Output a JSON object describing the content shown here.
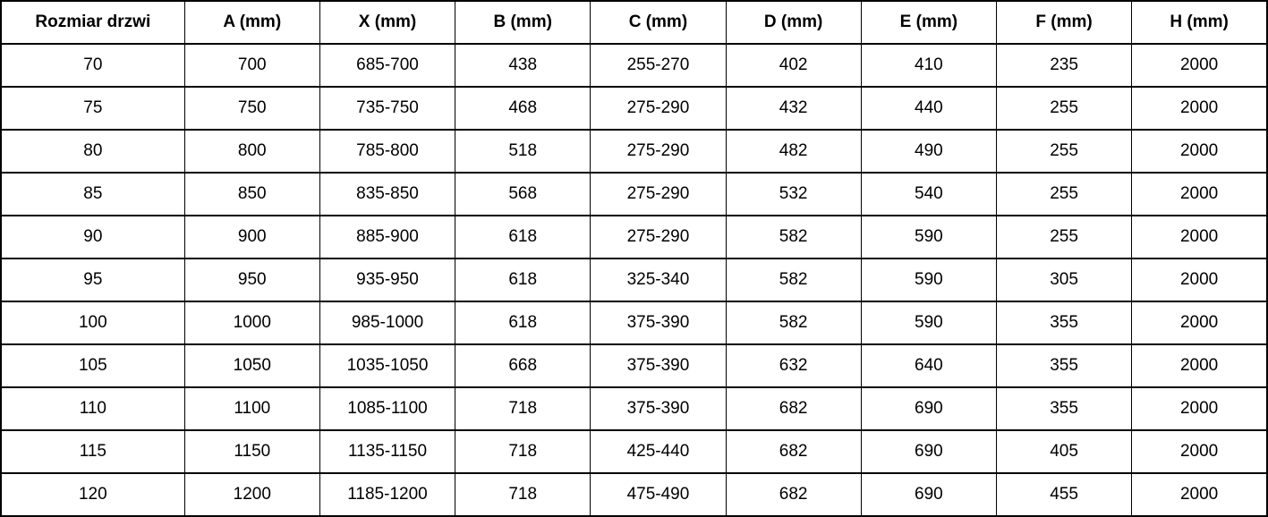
{
  "table": {
    "name": "door-size-specification",
    "columns": [
      "Rozmiar drzwi",
      "A (mm)",
      "X (mm)",
      "B (mm)",
      "C (mm)",
      "D (mm)",
      "E (mm)",
      "F (mm)",
      "H (mm)"
    ],
    "rows": [
      [
        "70",
        "700",
        "685-700",
        "438",
        "255-270",
        "402",
        "410",
        "235",
        "2000"
      ],
      [
        "75",
        "750",
        "735-750",
        "468",
        "275-290",
        "432",
        "440",
        "255",
        "2000"
      ],
      [
        "80",
        "800",
        "785-800",
        "518",
        "275-290",
        "482",
        "490",
        "255",
        "2000"
      ],
      [
        "85",
        "850",
        "835-850",
        "568",
        "275-290",
        "532",
        "540",
        "255",
        "2000"
      ],
      [
        "90",
        "900",
        "885-900",
        "618",
        "275-290",
        "582",
        "590",
        "255",
        "2000"
      ],
      [
        "95",
        "950",
        "935-950",
        "618",
        "325-340",
        "582",
        "590",
        "305",
        "2000"
      ],
      [
        "100",
        "1000",
        "985-1000",
        "618",
        "375-390",
        "582",
        "590",
        "355",
        "2000"
      ],
      [
        "105",
        "1050",
        "1035-1050",
        "668",
        "375-390",
        "632",
        "640",
        "355",
        "2000"
      ],
      [
        "110",
        "1100",
        "1085-1100",
        "718",
        "375-390",
        "682",
        "690",
        "355",
        "2000"
      ],
      [
        "115",
        "1150",
        "1135-1150",
        "718",
        "425-440",
        "682",
        "690",
        "405",
        "2000"
      ],
      [
        "120",
        "1200",
        "1185-1200",
        "718",
        "475-490",
        "682",
        "690",
        "455",
        "2000"
      ]
    ]
  },
  "colors": {
    "border": "#000000",
    "text": "#000000",
    "background": "#ffffff"
  }
}
